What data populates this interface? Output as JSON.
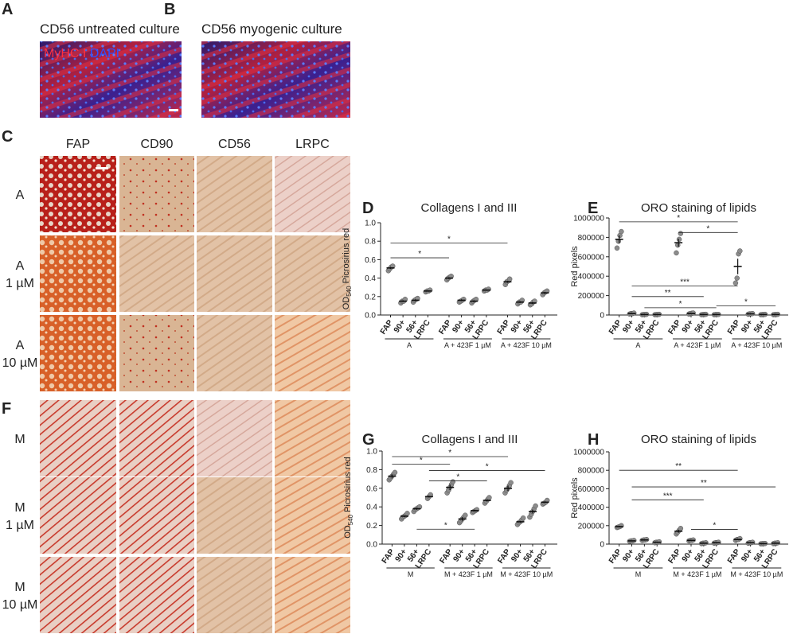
{
  "panel_a": {
    "letter": "A",
    "title": "CD56 untreated culture",
    "stain_red": "MyHC I",
    "stain_blue": "DAPI"
  },
  "panel_b": {
    "letter": "B",
    "title": "CD56 myogenic culture"
  },
  "panel_c": {
    "letter": "C",
    "columns": [
      "FAP",
      "CD90",
      "CD56",
      "LRPC"
    ],
    "rows": [
      [
        "A"
      ],
      [
        "A",
        "1 µM"
      ],
      [
        "A",
        "10 µM"
      ]
    ]
  },
  "panel_f": {
    "letter": "F",
    "rows": [
      [
        "M"
      ],
      [
        "M",
        "1 µM"
      ],
      [
        "M",
        "10 µM"
      ]
    ]
  },
  "chart_data": [
    {
      "type": "dot",
      "panel": "D",
      "title": "Collagens I and III",
      "ylabel": "OD",
      "ylabel_sub": "540",
      "ylabel_rest": "Picrosirius red",
      "categories": [
        "FAP",
        "90+",
        "56+",
        "LRPC",
        "FAP",
        "90+",
        "56+",
        "LRPC",
        "FAP",
        "90+",
        "56+",
        "LRPC"
      ],
      "groups": [
        "A",
        "A + 423F 1 µM",
        "A + 423F 10 µM"
      ],
      "values": [
        0.51,
        0.15,
        0.16,
        0.26,
        0.4,
        0.16,
        0.15,
        0.27,
        0.36,
        0.14,
        0.13,
        0.24
      ],
      "errors": [
        0.01,
        0.01,
        0.01,
        0.005,
        0.01,
        0.01,
        0.01,
        0.005,
        0.01,
        0.01,
        0.01,
        0.01
      ],
      "points": [
        [
          0.48,
          0.5,
          0.52,
          0.53
        ],
        [
          0.13,
          0.15,
          0.15,
          0.17
        ],
        [
          0.14,
          0.16,
          0.17,
          0.18
        ],
        [
          0.25,
          0.26,
          0.26,
          0.27
        ],
        [
          0.38,
          0.4,
          0.41,
          0.42
        ],
        [
          0.14,
          0.15,
          0.16,
          0.17
        ],
        [
          0.13,
          0.15,
          0.16,
          0.17
        ],
        [
          0.26,
          0.27,
          0.27,
          0.28
        ],
        [
          0.33,
          0.36,
          0.37,
          0.39
        ],
        [
          0.12,
          0.14,
          0.14,
          0.16
        ],
        [
          0.11,
          0.12,
          0.14,
          0.15
        ],
        [
          0.22,
          0.24,
          0.25,
          0.26
        ]
      ],
      "color": "#8c8c8c",
      "ylim": [
        0,
        1
      ],
      "yticks": [
        {
          "value": 0,
          "label": "0.0"
        },
        0.2,
        0.4,
        0.6,
        0.8,
        {
          "value": 1,
          "label": "1.0"
        }
      ],
      "annotations": [
        {
          "label": "*",
          "from": 0,
          "to": 4,
          "y": 0.62
        },
        {
          "label": "*",
          "from": 0,
          "to": 8,
          "y": 0.78
        }
      ]
    },
    {
      "type": "dot",
      "panel": "E",
      "title": "ORO staining of lipids",
      "ylabel": "Red pixels",
      "categories": [
        "FAP",
        "90+",
        "56+",
        "LRPC",
        "FAP",
        "90+",
        "56+",
        "LRPC",
        "FAP",
        "90+",
        "56+",
        "LRPC"
      ],
      "groups": [
        "A",
        "A + 423F 1 µM",
        "A + 423F 10 µM"
      ],
      "values": [
        780000,
        15000,
        5000,
        5000,
        745000,
        15000,
        5000,
        5000,
        500000,
        12000,
        5000,
        5000
      ],
      "errors": [
        40000,
        2000,
        2000,
        2000,
        40000,
        2000,
        2000,
        2000,
        80000,
        2000,
        2000,
        2000
      ],
      "points": [
        [
          690000,
          760000,
          820000,
          860000
        ],
        [
          10000,
          15000,
          15000,
          20000
        ],
        [
          3000,
          5000,
          5000,
          7000
        ],
        [
          3000,
          5000,
          5000,
          7000
        ],
        [
          640000,
          720000,
          780000,
          840000
        ],
        [
          10000,
          15000,
          18000,
          20000
        ],
        [
          3000,
          5000,
          6000,
          7000
        ],
        [
          3000,
          5000,
          5000,
          6000
        ],
        [
          330000,
          380000,
          630000,
          660000
        ],
        [
          8000,
          12000,
          12000,
          15000
        ],
        [
          3000,
          5000,
          5000,
          7000
        ],
        [
          3000,
          5000,
          5000,
          7000
        ]
      ],
      "color": "#8c8c8c",
      "ylim": [
        0,
        1000000
      ],
      "yticks": [
        0,
        200000,
        400000,
        600000,
        800000,
        1000000
      ],
      "annotations": [
        {
          "label": "*",
          "from": 0,
          "to": 8,
          "y": 960000
        },
        {
          "label": "*",
          "from": 4,
          "to": 8,
          "y": 850000
        },
        {
          "label": "***",
          "from": 1,
          "to": 8,
          "y": 300000
        },
        {
          "label": "**",
          "from": 1,
          "to": 6,
          "y": 190000
        },
        {
          "label": "*",
          "from": 2,
          "to": 7,
          "y": 75000
        },
        {
          "label": "*",
          "from": 7,
          "to": 11,
          "y": 95000
        }
      ]
    },
    {
      "type": "dot",
      "panel": "G",
      "title": "Collagens I and III",
      "ylabel": "OD",
      "ylabel_sub": "540",
      "ylabel_rest": "Picrosirius red",
      "categories": [
        "FAP",
        "90+",
        "56+",
        "LRPC",
        "FAP",
        "90+",
        "56+",
        "LRPC",
        "FAP",
        "90+",
        "56+",
        "LRPC"
      ],
      "groups": [
        "M",
        "M + 423F 1 µM",
        "M + 423F 10 µM"
      ],
      "values": [
        0.73,
        0.3,
        0.38,
        0.51,
        0.61,
        0.27,
        0.36,
        0.47,
        0.6,
        0.24,
        0.35,
        0.45
      ],
      "errors": [
        0.02,
        0.01,
        0.01,
        0.01,
        0.03,
        0.02,
        0.01,
        0.01,
        0.03,
        0.01,
        0.02,
        0.01
      ],
      "points": [
        [
          0.69,
          0.71,
          0.73,
          0.75,
          0.77
        ],
        [
          0.27,
          0.29,
          0.3,
          0.31,
          0.33
        ],
        [
          0.35,
          0.37,
          0.38,
          0.39,
          0.4
        ],
        [
          0.49,
          0.51,
          0.53
        ],
        [
          0.55,
          0.58,
          0.61,
          0.64,
          0.67
        ],
        [
          0.23,
          0.25,
          0.27,
          0.29,
          0.31
        ],
        [
          0.34,
          0.35,
          0.36,
          0.37
        ],
        [
          0.44,
          0.46,
          0.48,
          0.5
        ],
        [
          0.55,
          0.58,
          0.6,
          0.63,
          0.66
        ],
        [
          0.21,
          0.23,
          0.24,
          0.26,
          0.28
        ],
        [
          0.29,
          0.32,
          0.35,
          0.38,
          0.41
        ],
        [
          0.43,
          0.44,
          0.45,
          0.47
        ]
      ],
      "color": "#8c8c8c",
      "ylim": [
        0,
        1
      ],
      "yticks": [
        {
          "value": 0,
          "label": "0.0"
        },
        0.2,
        0.4,
        0.6,
        0.8,
        {
          "value": 1,
          "label": "1.0"
        }
      ],
      "annotations": [
        {
          "label": "*",
          "from": 0,
          "to": 8,
          "y": 0.94
        },
        {
          "label": "*",
          "from": 0,
          "to": 4,
          "y": 0.86
        },
        {
          "label": "*",
          "from": 3,
          "to": 11,
          "y": 0.79
        },
        {
          "label": "*",
          "from": 3,
          "to": 7,
          "y": 0.68
        },
        {
          "label": "*",
          "from": 2,
          "to": 6,
          "y": 0.16
        }
      ]
    },
    {
      "type": "dot",
      "panel": "H",
      "title": "ORO staining of lipids",
      "ylabel": "Red pixels",
      "categories": [
        "FAP",
        "90+",
        "56+",
        "LRPC",
        "FAP",
        "90+",
        "56+",
        "LRPC",
        "FAP",
        "90+",
        "56+",
        "LRPC"
      ],
      "groups": [
        "M",
        "M + 423F 1 µM",
        "M + 423F 10 µM"
      ],
      "values": [
        190000,
        35000,
        45000,
        20000,
        140000,
        40000,
        10000,
        15000,
        50000,
        15000,
        5000,
        10000
      ],
      "errors": [
        8000,
        3000,
        3000,
        3000,
        15000,
        3000,
        3000,
        3000,
        5000,
        3000,
        1000,
        2000
      ],
      "points": [
        [
          180000,
          185000,
          190000,
          200000
        ],
        [
          30000,
          35000,
          35000,
          40000
        ],
        [
          40000,
          45000,
          45000,
          50000
        ],
        [
          15000,
          20000,
          20000,
          25000
        ],
        [
          110000,
          130000,
          150000,
          170000
        ],
        [
          35000,
          40000,
          40000,
          45000
        ],
        [
          5000,
          10000,
          10000,
          15000
        ],
        [
          10000,
          15000,
          15000,
          20000
        ],
        [
          40000,
          50000,
          50000,
          60000
        ],
        [
          10000,
          15000,
          15000,
          20000
        ],
        [
          3000,
          5000,
          5000,
          7000
        ],
        [
          5000,
          10000,
          10000,
          15000
        ]
      ],
      "color": "#8c8c8c",
      "ylim": [
        0,
        1000000
      ],
      "yticks": [
        0,
        200000,
        400000,
        600000,
        800000,
        1000000
      ],
      "annotations": [
        {
          "label": "**",
          "from": 0,
          "to": 8,
          "y": 800000
        },
        {
          "label": "**",
          "from": 1,
          "to": 11,
          "y": 620000
        },
        {
          "label": "***",
          "from": 1,
          "to": 6,
          "y": 480000
        },
        {
          "label": "*",
          "from": 5,
          "to": 8,
          "y": 160000
        }
      ]
    }
  ]
}
